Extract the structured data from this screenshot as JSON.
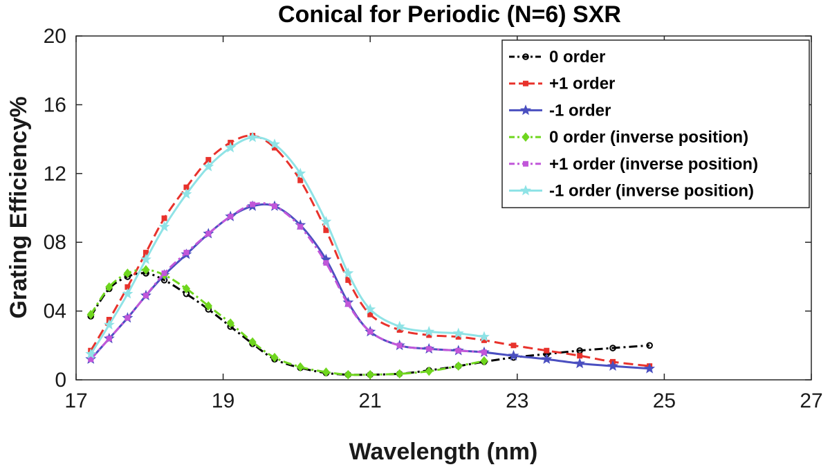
{
  "chart_data": {
    "type": "line",
    "title": "Conical for Periodic (N=6) SXR",
    "xlabel": "Wavelength (nm)",
    "ylabel": "Grating Efficiency%",
    "xlim": [
      17,
      27
    ],
    "ylim": [
      0,
      20
    ],
    "xticks": [
      17,
      19,
      21,
      23,
      25,
      27
    ],
    "xtick_labels": [
      "17",
      "19",
      "21",
      "23",
      "25",
      "27"
    ],
    "yticks": [
      0,
      4,
      8,
      12,
      16,
      20
    ],
    "ytick_labels": [
      "0",
      "04",
      "08",
      "12",
      "16",
      "20"
    ],
    "grid": false,
    "legend_position": "top-right",
    "series": [
      {
        "name": "0 order",
        "color": "#000000",
        "linestyle": "dashdot",
        "marker": "circle",
        "points": [
          [
            17.2,
            3.7
          ],
          [
            17.45,
            5.3
          ],
          [
            17.7,
            6.0
          ],
          [
            17.95,
            6.2
          ],
          [
            18.2,
            5.8
          ],
          [
            18.5,
            5.0
          ],
          [
            18.8,
            4.1
          ],
          [
            19.1,
            3.1
          ],
          [
            19.4,
            2.1
          ],
          [
            19.7,
            1.2
          ],
          [
            20.05,
            0.7
          ],
          [
            20.4,
            0.4
          ],
          [
            20.7,
            0.3
          ],
          [
            21.0,
            0.3
          ],
          [
            21.4,
            0.35
          ],
          [
            21.8,
            0.55
          ],
          [
            22.2,
            0.8
          ],
          [
            22.55,
            1.05
          ],
          [
            22.95,
            1.3
          ],
          [
            23.4,
            1.5
          ],
          [
            23.85,
            1.7
          ],
          [
            24.3,
            1.85
          ],
          [
            24.8,
            2.0
          ]
        ]
      },
      {
        "name": "+1 order",
        "color": "#e8322c",
        "linestyle": "dashed",
        "marker": "square",
        "points": [
          [
            17.2,
            1.7
          ],
          [
            17.45,
            3.5
          ],
          [
            17.7,
            5.4
          ],
          [
            17.95,
            7.4
          ],
          [
            18.2,
            9.4
          ],
          [
            18.5,
            11.2
          ],
          [
            18.8,
            12.8
          ],
          [
            19.1,
            13.8
          ],
          [
            19.4,
            14.2
          ],
          [
            19.7,
            13.5
          ],
          [
            20.05,
            11.6
          ],
          [
            20.4,
            8.7
          ],
          [
            20.7,
            5.8
          ],
          [
            21.0,
            3.8
          ],
          [
            21.4,
            2.9
          ],
          [
            21.8,
            2.6
          ],
          [
            22.2,
            2.5
          ],
          [
            22.55,
            2.3
          ],
          [
            22.95,
            2.0
          ],
          [
            23.4,
            1.7
          ],
          [
            23.85,
            1.4
          ],
          [
            24.3,
            1.05
          ],
          [
            24.8,
            0.8
          ]
        ]
      },
      {
        "name": "-1 order",
        "color": "#4a4fc0",
        "linestyle": "solid",
        "marker": "star",
        "points": [
          [
            17.2,
            1.2
          ],
          [
            17.45,
            2.4
          ],
          [
            17.7,
            3.6
          ],
          [
            17.95,
            4.9
          ],
          [
            18.2,
            6.1
          ],
          [
            18.5,
            7.3
          ],
          [
            18.8,
            8.5
          ],
          [
            19.1,
            9.5
          ],
          [
            19.4,
            10.1
          ],
          [
            19.7,
            10.1
          ],
          [
            20.05,
            9.0
          ],
          [
            20.4,
            7.0
          ],
          [
            20.7,
            4.5
          ],
          [
            21.0,
            2.8
          ],
          [
            21.4,
            2.0
          ],
          [
            21.8,
            1.8
          ],
          [
            22.2,
            1.7
          ],
          [
            22.55,
            1.6
          ],
          [
            22.95,
            1.4
          ],
          [
            23.4,
            1.2
          ],
          [
            23.85,
            0.95
          ],
          [
            24.3,
            0.8
          ],
          [
            24.8,
            0.65
          ]
        ]
      },
      {
        "name": "0 order (inverse position)",
        "color": "#6fd61e",
        "linestyle": "dashdot",
        "marker": "diamond",
        "points": [
          [
            17.2,
            3.8
          ],
          [
            17.45,
            5.4
          ],
          [
            17.7,
            6.2
          ],
          [
            17.95,
            6.4
          ],
          [
            18.2,
            6.1
          ],
          [
            18.5,
            5.3
          ],
          [
            18.8,
            4.3
          ],
          [
            19.1,
            3.3
          ],
          [
            19.4,
            2.2
          ],
          [
            19.7,
            1.3
          ],
          [
            20.05,
            0.75
          ],
          [
            20.4,
            0.45
          ],
          [
            20.7,
            0.3
          ],
          [
            21.0,
            0.3
          ],
          [
            21.4,
            0.35
          ],
          [
            21.8,
            0.5
          ],
          [
            22.2,
            0.8
          ],
          [
            22.55,
            1.1
          ]
        ]
      },
      {
        "name": "+1 order (inverse position)",
        "color": "#c157d9",
        "linestyle": "dashdot",
        "marker": "square",
        "points": [
          [
            17.2,
            1.2
          ],
          [
            17.45,
            2.4
          ],
          [
            17.7,
            3.6
          ],
          [
            17.95,
            4.9
          ],
          [
            18.2,
            6.2
          ],
          [
            18.5,
            7.4
          ],
          [
            18.8,
            8.5
          ],
          [
            19.1,
            9.5
          ],
          [
            19.4,
            10.2
          ],
          [
            19.7,
            10.1
          ],
          [
            20.05,
            8.9
          ],
          [
            20.4,
            6.8
          ],
          [
            20.7,
            4.4
          ],
          [
            21.0,
            2.8
          ],
          [
            21.4,
            2.0
          ],
          [
            21.8,
            1.8
          ],
          [
            22.2,
            1.7
          ],
          [
            22.55,
            1.6
          ]
        ]
      },
      {
        "name": "-1 order (inverse position)",
        "color": "#8fe3e6",
        "linestyle": "solid",
        "marker": "star",
        "points": [
          [
            17.2,
            1.5
          ],
          [
            17.45,
            3.2
          ],
          [
            17.7,
            5.0
          ],
          [
            17.95,
            7.0
          ],
          [
            18.2,
            8.9
          ],
          [
            18.5,
            10.8
          ],
          [
            18.8,
            12.4
          ],
          [
            19.1,
            13.5
          ],
          [
            19.4,
            14.1
          ],
          [
            19.7,
            13.7
          ],
          [
            20.05,
            12.0
          ],
          [
            20.4,
            9.2
          ],
          [
            20.7,
            6.2
          ],
          [
            21.0,
            4.1
          ],
          [
            21.4,
            3.1
          ],
          [
            21.8,
            2.8
          ],
          [
            22.2,
            2.7
          ],
          [
            22.55,
            2.5
          ]
        ]
      }
    ]
  }
}
